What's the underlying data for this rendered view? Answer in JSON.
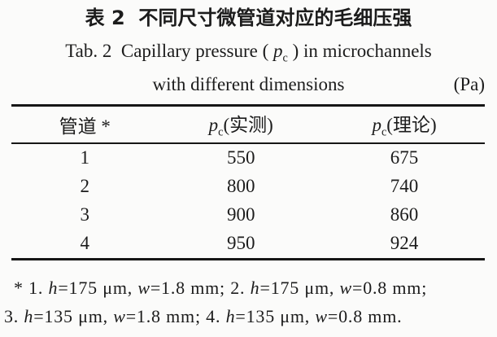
{
  "page": {
    "background": "#fbfbfa",
    "text_color": "#1c1c1c",
    "rule_color": "#161616"
  },
  "title": {
    "zh": "表 2  不同尺寸微管道对应的毛细压强",
    "en1_prefix": "Tab. 2  Capillary pressure ( ",
    "en1_var": "p",
    "en1_sub": "c",
    "en1_suffix": " ) in microchannels",
    "en_line2": "with different dimensions",
    "unit": "(Pa)"
  },
  "table": {
    "headers": [
      {
        "text": "管道 *"
      },
      {
        "var": "p",
        "sub": "c",
        "paren": "(实测)"
      },
      {
        "var": "p",
        "sub": "c",
        "paren": "(理论)"
      }
    ]
  },
  "chart_data": {
    "type": "table",
    "title": "表 2 不同尺寸微管道对应的毛细压强 — Tab. 2 Capillary pressure (pc) in microchannels with different dimensions",
    "unit": "Pa",
    "columns": [
      "管道 *",
      "pc(实测)",
      "pc(理论)"
    ],
    "rows": [
      [
        "1",
        "550",
        "675"
      ],
      [
        "2",
        "800",
        "740"
      ],
      [
        "3",
        "900",
        "860"
      ],
      [
        "4",
        "950",
        "924"
      ]
    ],
    "footnote": "* 1. h=175 μm, w=1.8 mm; 2. h=175 μm, w=0.8 mm; 3. h=135 μm, w=1.8 mm; 4. h=135 μm, w=0.8 mm."
  },
  "footnote": {
    "line1": [
      "* 1. ",
      "h",
      "=175 μm, ",
      "w",
      "=1.8 mm; 2. ",
      "h",
      "=175 μm, ",
      "w",
      "=0.8 mm;"
    ],
    "line2": [
      "3. ",
      "h",
      "=135 μm, ",
      "w",
      "=1.8 mm; 4. ",
      "h",
      "=135 μm, ",
      "w",
      "=0.8 mm."
    ]
  }
}
